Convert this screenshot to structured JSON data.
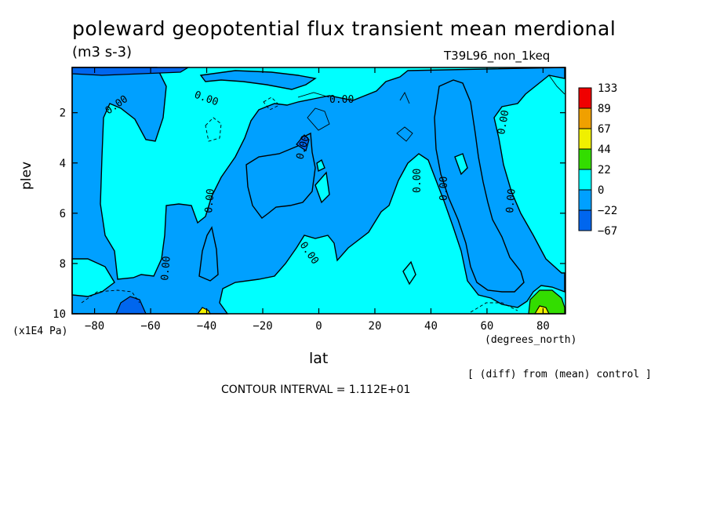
{
  "chart_data": {
    "type": "contour",
    "title": "poleward geopotential flux transient mean merdional",
    "units": "(m3 s-3)",
    "run_label": "T39L96_non_1keq",
    "xlabel": "lat",
    "x_unit": "(degrees_north)",
    "ylabel": "plev",
    "y_unit": "(x1E4 Pa)",
    "xlim": [
      -88,
      88
    ],
    "ylim": [
      0.2,
      10
    ],
    "x_ticks": [
      "-80",
      "-60",
      "-40",
      "-20",
      "0",
      "20",
      "40",
      "60",
      "80"
    ],
    "x_tick_values": [
      -80,
      -60,
      -40,
      -20,
      0,
      20,
      40,
      60,
      80
    ],
    "y_ticks": [
      "2",
      "4",
      "6",
      "8",
      "10"
    ],
    "y_tick_values": [
      2,
      4,
      6,
      8,
      10
    ],
    "contour_label": "0.00",
    "contour_interval": "CONTOUR INTERVAL = 1.112E+01",
    "note": "[ (diff) from (mean) control ]",
    "colorbar": {
      "labels": [
        "133",
        "89",
        "67",
        "44",
        "22",
        "0",
        "-22",
        "-67"
      ],
      "colors": [
        "#f00000",
        "#f0a000",
        "#f0f000",
        "#33dd00",
        "#00ffff",
        "#00a0ff",
        "#0066ee"
      ]
    }
  }
}
